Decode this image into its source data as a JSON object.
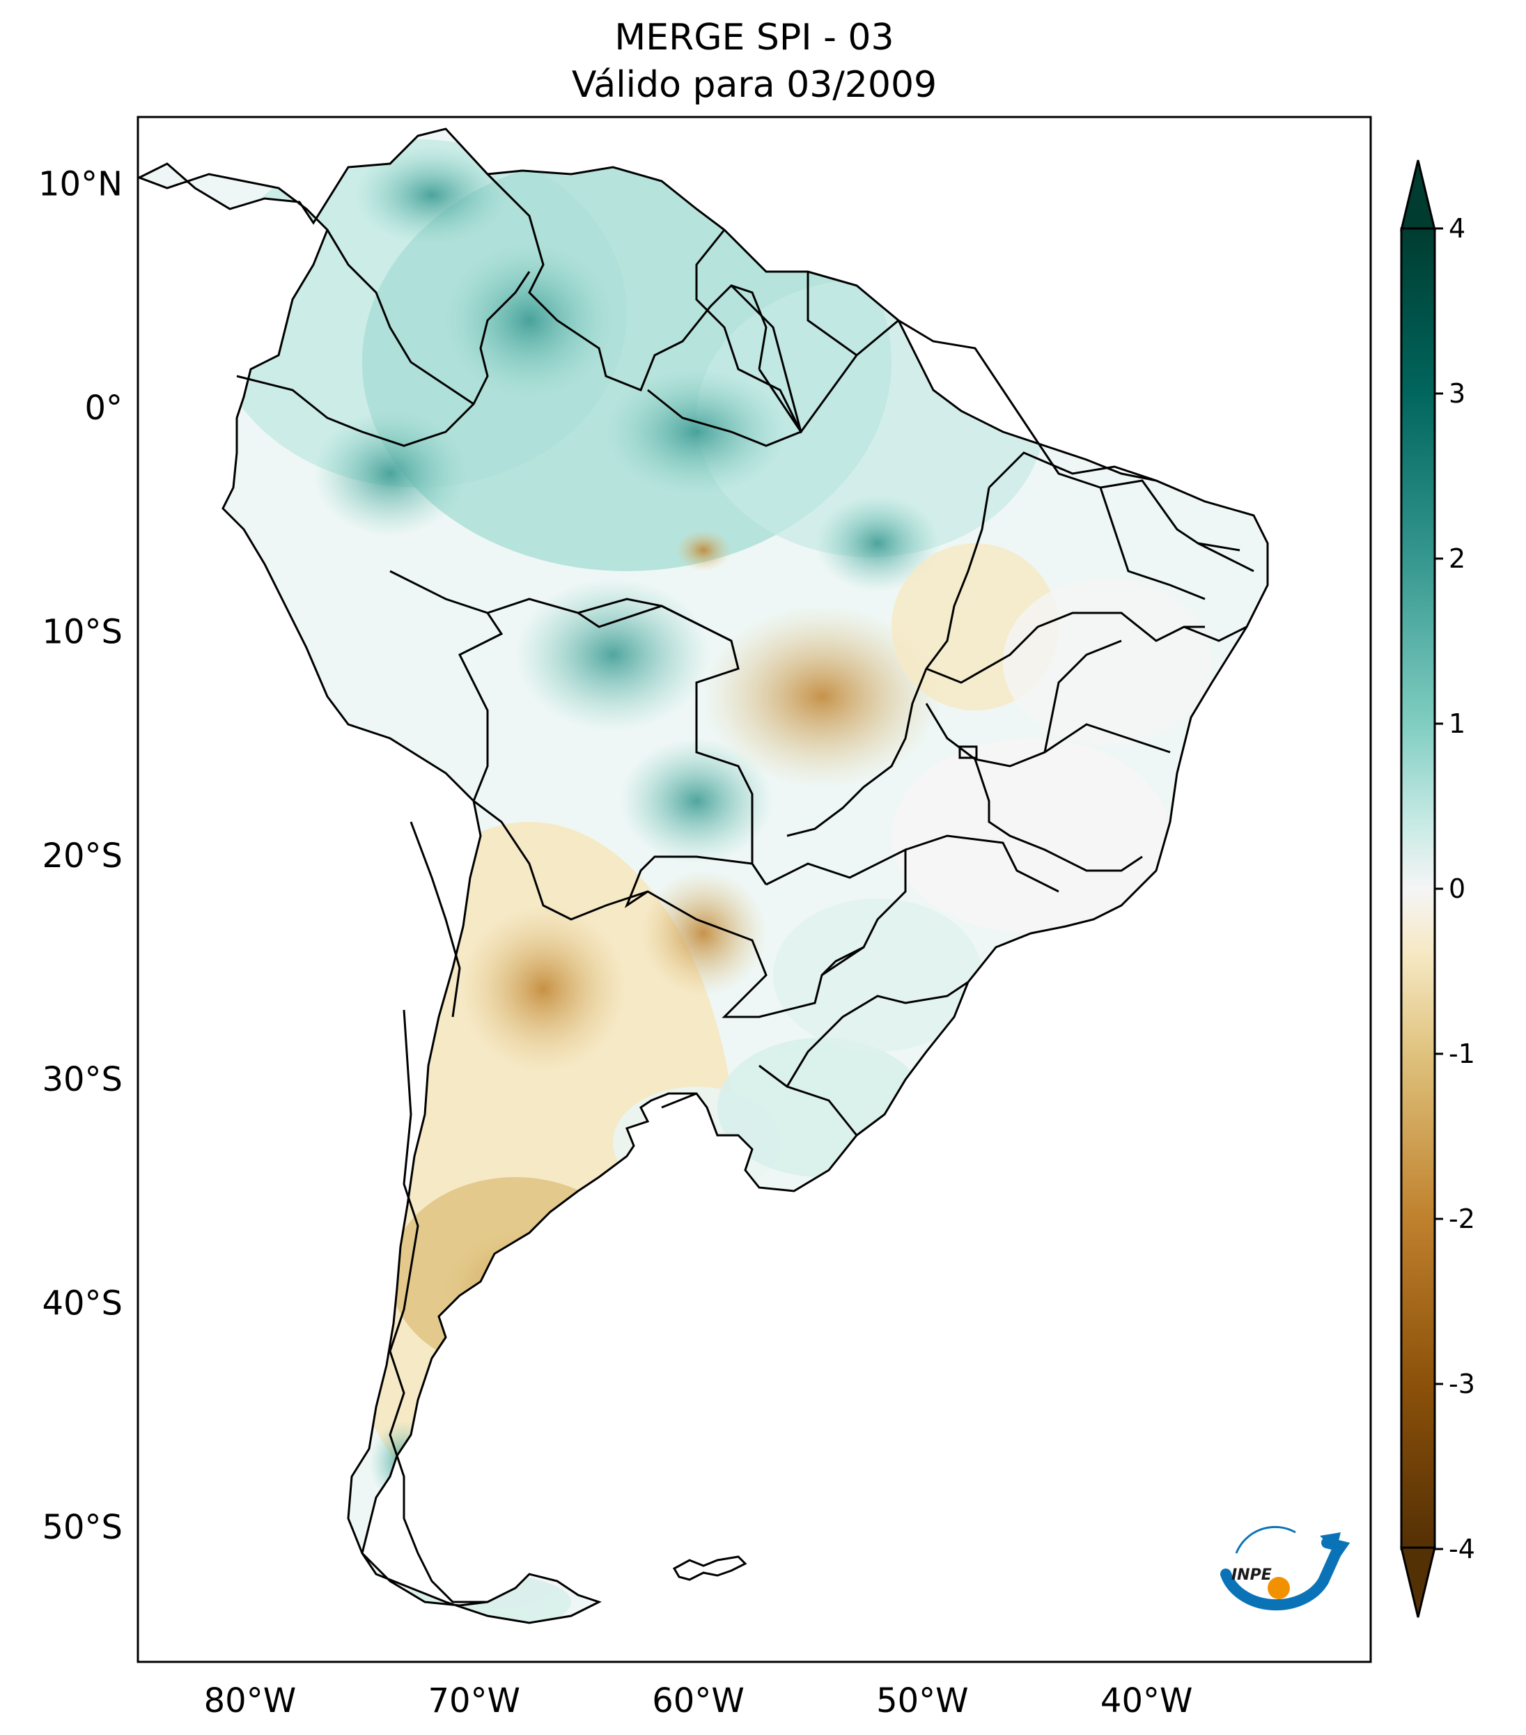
{
  "title": {
    "line1": "MERGE   SPI - 03",
    "line2": "Válido para 03/2009"
  },
  "axes": {
    "lat_labels": [
      "10°N",
      "0°",
      "10°S",
      "20°S",
      "30°S",
      "40°S",
      "50°S"
    ],
    "lat_values": [
      10,
      0,
      -10,
      -20,
      -30,
      -40,
      -50
    ],
    "lon_labels": [
      "80°W",
      "70°W",
      "60°W",
      "50°W",
      "40°W"
    ],
    "lon_values": [
      -80,
      -70,
      -60,
      -50,
      -40
    ],
    "lon_range": [
      -85,
      -30
    ],
    "lat_range": [
      -56,
      13
    ]
  },
  "colorbar": {
    "labels": [
      "4",
      "3",
      "2",
      "1",
      "0",
      "-1",
      "-2",
      "-3",
      "-4"
    ],
    "values": [
      4,
      3,
      2,
      1,
      0,
      -1,
      -2,
      -3,
      -4
    ],
    "min": -4,
    "max": 4,
    "colors": {
      "high": "#01403a",
      "mid_high": "#35978f",
      "light_high": "#c7eae5",
      "neutral": "#f5f5f5",
      "light_low": "#f6e8c3",
      "mid_low": "#bf812d",
      "low": "#543005"
    }
  },
  "logo": {
    "text": "INPE",
    "colors": {
      "arc": "#0a73b7",
      "dot": "#f29100"
    }
  }
}
